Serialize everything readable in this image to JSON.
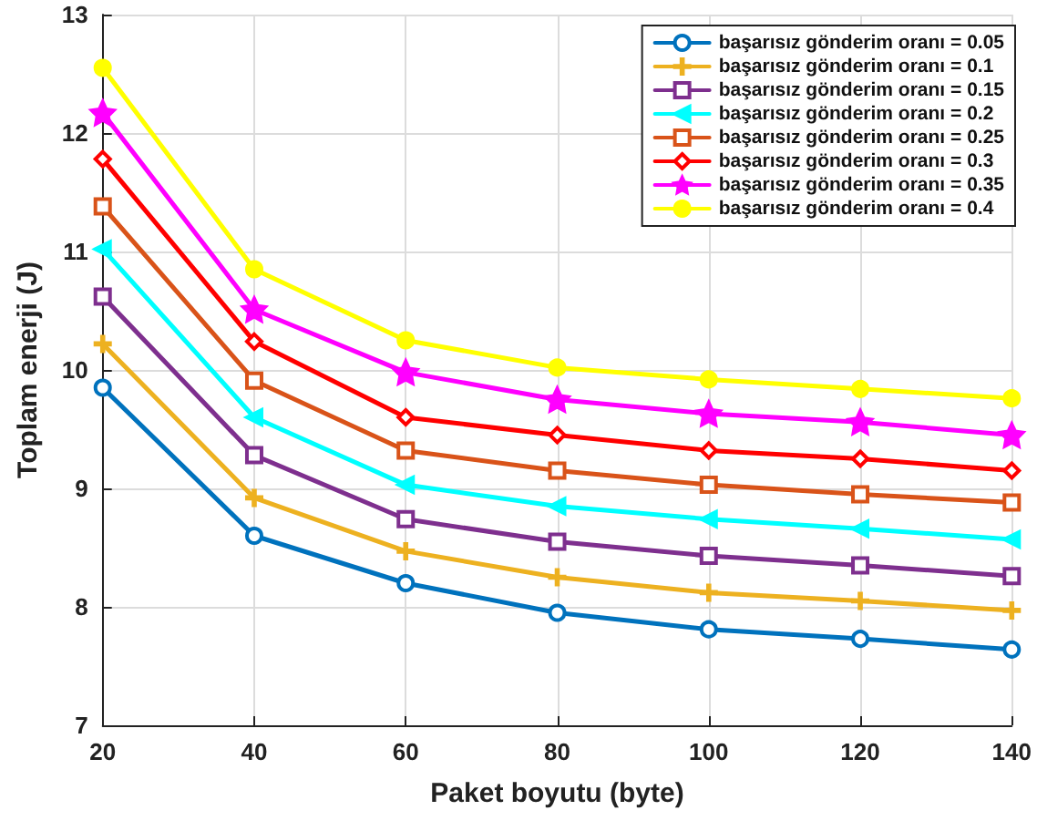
{
  "chart_data": {
    "type": "line",
    "xlabel": "Paket boyutu (byte)",
    "ylabel": "Toplam enerji (J)",
    "x": [
      20,
      40,
      60,
      80,
      100,
      120,
      140
    ],
    "series": [
      {
        "name": "başarısız gönderim oranı = 0.05",
        "color": "#0072bd",
        "marker": "circle",
        "values": [
          9.85,
          8.6,
          8.2,
          7.95,
          7.81,
          7.73,
          7.64
        ]
      },
      {
        "name": "başarısız gönderim oranı = 0.1",
        "color": "#edb120",
        "marker": "cross",
        "values": [
          10.22,
          8.92,
          8.47,
          8.25,
          8.12,
          8.05,
          7.97
        ]
      },
      {
        "name": "başarısız gönderim oranı = 0.15",
        "color": "#7e2f8e",
        "marker": "square",
        "values": [
          10.62,
          9.28,
          8.74,
          8.55,
          8.43,
          8.35,
          8.26
        ]
      },
      {
        "name": "başarısız gönderim oranı = 0.2",
        "color": "#00ffff",
        "marker": "triangle",
        "values": [
          11.02,
          9.6,
          9.03,
          8.85,
          8.74,
          8.66,
          8.57
        ]
      },
      {
        "name": "başarısız gönderim oranı = 0.25",
        "color": "#d95319",
        "marker": "square",
        "values": [
          11.38,
          9.91,
          9.32,
          9.15,
          9.03,
          8.95,
          8.88
        ]
      },
      {
        "name": "başarısız gönderim oranı = 0.3",
        "color": "#ff0000",
        "marker": "diamond",
        "values": [
          11.78,
          10.24,
          9.6,
          9.45,
          9.32,
          9.25,
          9.15
        ]
      },
      {
        "name": "başarısız gönderim oranı = 0.35",
        "color": "#ff00ff",
        "marker": "star",
        "values": [
          12.17,
          10.51,
          9.98,
          9.75,
          9.63,
          9.56,
          9.45
        ]
      },
      {
        "name": "başarısız gönderim oranı = 0.4",
        "color": "#ffff00",
        "marker": "circle",
        "values": [
          12.55,
          10.85,
          10.25,
          10.02,
          9.92,
          9.84,
          9.76
        ]
      }
    ],
    "xlim": [
      20,
      140
    ],
    "xticks": [
      20,
      40,
      60,
      80,
      100,
      120,
      140
    ],
    "ylim": [
      7,
      13
    ],
    "yticks": [
      7,
      8,
      9,
      10,
      11,
      12,
      13
    ],
    "grid": true,
    "legend": "top right",
    "line_style": "solid"
  }
}
